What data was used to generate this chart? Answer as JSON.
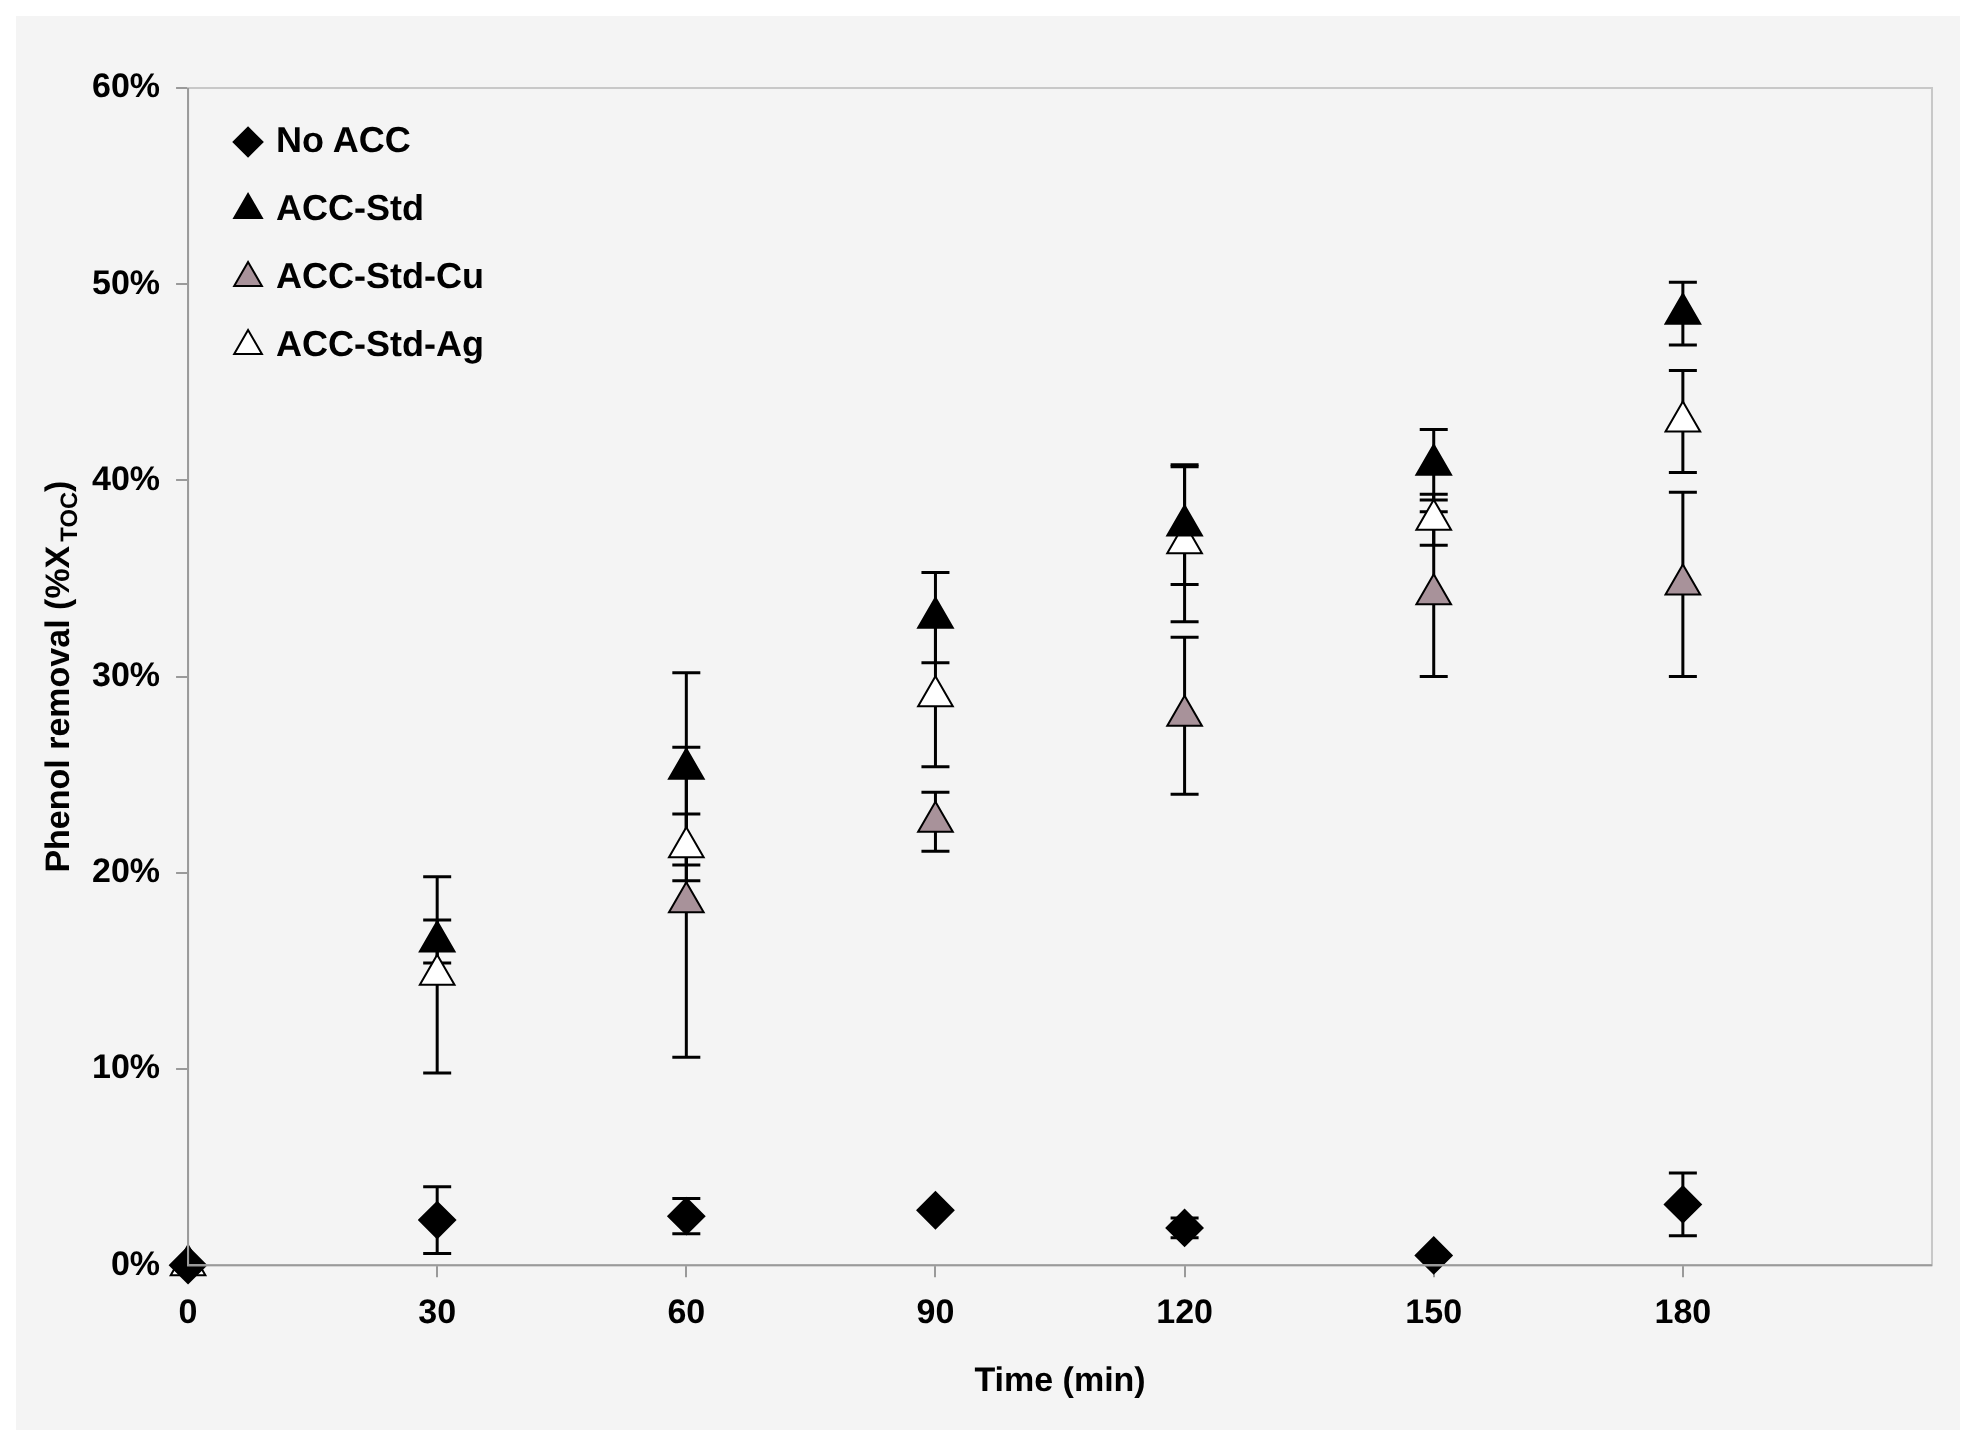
{
  "chart_data": {
    "type": "scatter",
    "xlabel": "Time (min)",
    "ylabel": "Phenol removal (%X$_{TOC}$)",
    "x": [
      0,
      30,
      60,
      90,
      120,
      150,
      180
    ],
    "xlim": [
      0,
      210
    ],
    "xticks": [
      0,
      30,
      60,
      90,
      120,
      150,
      180
    ],
    "ylim": [
      0,
      60
    ],
    "yticks": [
      {
        "value": 0,
        "label": "0%"
      },
      {
        "value": 10,
        "label": "10%"
      },
      {
        "value": 20,
        "label": "20%"
      },
      {
        "value": 30,
        "label": "30%"
      },
      {
        "value": 40,
        "label": "40%"
      },
      {
        "value": 50,
        "label": "50%"
      },
      {
        "value": 60,
        "label": "60%"
      }
    ],
    "grid": false,
    "legend": "top left",
    "series": [
      {
        "name": "No ACC",
        "color": "#000000",
        "marker": "diamond",
        "values": [
          0,
          2.3,
          2.5,
          2.8,
          1.9,
          0.5,
          3.1
        ],
        "errors": [
          null,
          1.7,
          0.9,
          null,
          0.5,
          null,
          1.6
        ]
      },
      {
        "name": "ACC-Std",
        "color": "#000000",
        "marker": "triangle",
        "values": [
          null,
          16.5,
          25.3,
          33,
          37.7,
          40.8,
          48.5
        ],
        "errors": [
          null,
          1.1,
          4.9,
          2.3,
          3,
          1.8,
          1.6
        ]
      },
      {
        "name": "ACC-Std-Cu",
        "color": "#a8929a",
        "marker": "triangle",
        "values": [
          null,
          null,
          18.5,
          22.6,
          28,
          34.2,
          34.7
        ],
        "errors": [
          null,
          null,
          7.9,
          1.5,
          4,
          4.2,
          4.7
        ]
      },
      {
        "name": "ACC-Std-Ag",
        "color": "#ffffff",
        "marker": "triangle",
        "values": [
          0,
          14.8,
          21.3,
          29,
          36.8,
          38,
          43
        ],
        "errors": [
          null,
          5,
          1.7,
          3.6,
          4,
          1.3,
          2.6
        ]
      }
    ]
  }
}
